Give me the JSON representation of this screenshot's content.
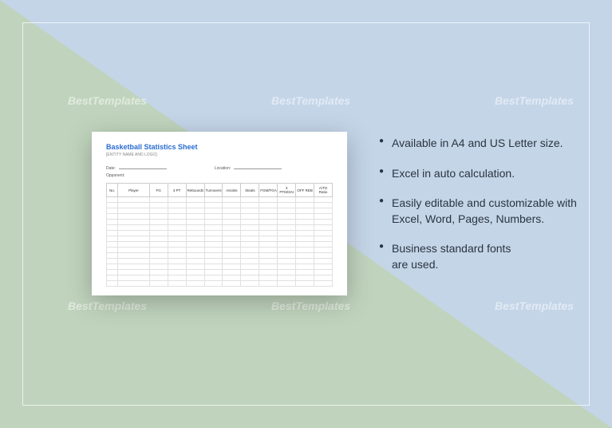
{
  "watermark_text": "BestTemplates",
  "document": {
    "title": "Basketball Statistics Sheet",
    "subtitle": "[ENTITY NAME AND LOGO]",
    "meta": {
      "date_label": "Date:",
      "location_label": "Location:",
      "opponent_label": "Opponent:"
    },
    "columns": [
      "No.",
      "Player",
      "FG",
      "3 PT",
      "Rebounds",
      "Turnovers",
      "Assists",
      "Steals",
      "FGM/FGA",
      "3 PTM/3At",
      "OFF REB",
      "A/TO Ratio"
    ],
    "background_color": "#ffffff",
    "title_color": "#2a6dd1",
    "border_color": "#ccc",
    "row_count": 16
  },
  "features": {
    "items": [
      "Available in A4 and US Letter size.",
      "Excel in auto calculation.",
      "Easily editable and customizable with Excel, Word, Pages, Numbers.",
      "Business standard fonts\nare used."
    ],
    "text_color": "#2a3440",
    "fontsize": 14
  },
  "background": {
    "left_color": "#c0d4bd",
    "right_color": "#c4d5e8",
    "frame_color": "rgba(255,255,255,0.7)"
  }
}
